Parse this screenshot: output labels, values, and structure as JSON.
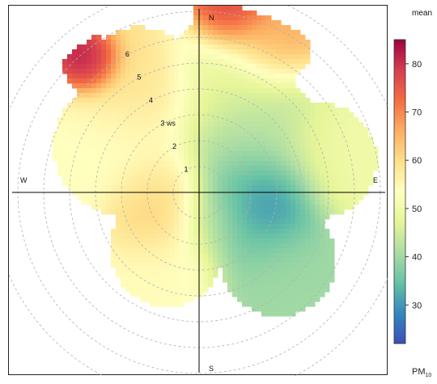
{
  "chart_data": {
    "type": "heatmap",
    "subtype": "polar",
    "pollutant": "PM",
    "pollutant_subscript": "10",
    "statistic": "mean",
    "radial_variable": "ws",
    "radial_ticks": [
      1,
      2,
      3,
      4,
      5,
      6
    ],
    "radial_tick_labels": [
      "1",
      "2",
      "3 ws",
      "4",
      "5",
      "6"
    ],
    "compass": [
      "N",
      "E",
      "S",
      "W"
    ],
    "colorbar": {
      "range": [
        22,
        85
      ],
      "ticks": [
        30,
        40,
        50,
        60,
        70,
        80
      ],
      "palette": [
        "#3b4fb5",
        "#3288bd",
        "#66c2a5",
        "#abdda4",
        "#e6f598",
        "#ffffbf",
        "#fee08b",
        "#fdae61",
        "#f46d43",
        "#d53e4f",
        "#9e0142"
      ]
    },
    "blobs": [
      {
        "direction_deg": 95,
        "ws": 2.7,
        "value": 22,
        "spread": 0.9
      },
      {
        "direction_deg": 110,
        "ws": 2.2,
        "value": 32,
        "spread": 1.2
      },
      {
        "direction_deg": 70,
        "ws": 2.2,
        "value": 38,
        "spread": 1.3
      },
      {
        "direction_deg": 40,
        "ws": 3.0,
        "value": 42,
        "spread": 1.4
      },
      {
        "direction_deg": 15,
        "ws": 4.5,
        "value": 48,
        "spread": 1.4
      },
      {
        "direction_deg": 150,
        "ws": 1.2,
        "value": 42,
        "spread": 0.8
      },
      {
        "direction_deg": 245,
        "ws": 1.8,
        "value": 66,
        "spread": 0.9
      },
      {
        "direction_deg": 275,
        "ws": 1.5,
        "value": 58,
        "spread": 1.0
      },
      {
        "direction_deg": 210,
        "ws": 2.5,
        "value": 54,
        "spread": 1.2
      },
      {
        "direction_deg": 300,
        "ws": 3.5,
        "value": 53,
        "spread": 1.4
      },
      {
        "direction_deg": 330,
        "ws": 4.6,
        "value": 60,
        "spread": 1.3
      },
      {
        "direction_deg": 320,
        "ws": 6.5,
        "value": 85,
        "spread": 0.6
      },
      {
        "direction_deg": 10,
        "ws": 7.0,
        "value": 80,
        "spread": 0.8
      },
      {
        "direction_deg": 25,
        "ws": 6.4,
        "value": 68,
        "spread": 0.9
      },
      {
        "direction_deg": 75,
        "ws": 4.8,
        "value": 50,
        "spread": 1.2
      },
      {
        "direction_deg": 130,
        "ws": 4.0,
        "value": 40,
        "spread": 1.2
      }
    ]
  }
}
